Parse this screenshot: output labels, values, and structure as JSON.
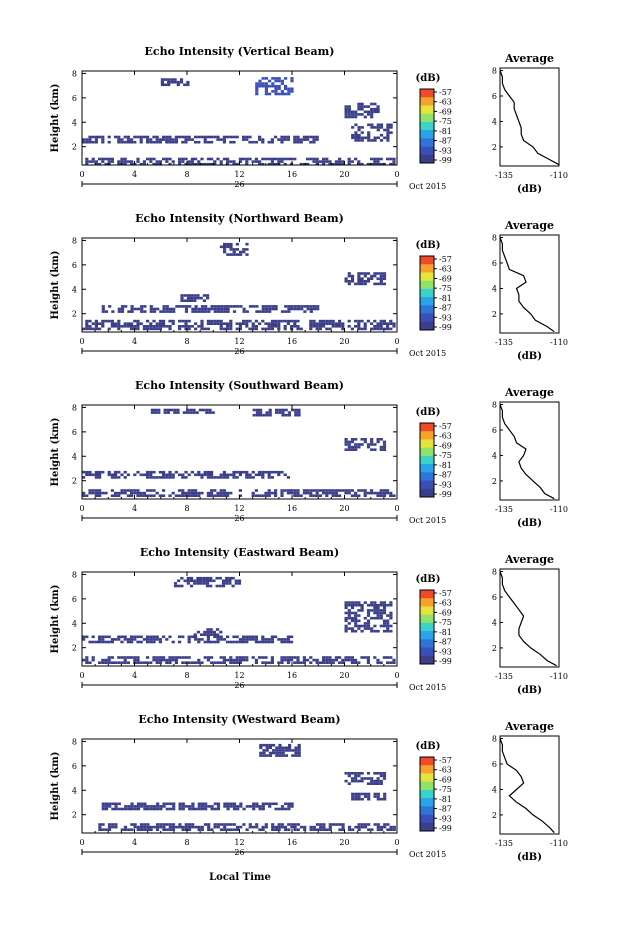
{
  "figure": {
    "x_axis_label": "Local Time",
    "date_marker": "26",
    "date_label": "Oct 2015",
    "colorbar_unit": "(dB)",
    "colorbar_ticks": [
      "-57",
      "-63",
      "-69",
      "-75",
      "-81",
      "-87",
      "-93",
      "-99"
    ],
    "avg_title": "Average",
    "avg_xlabel": "(dB)",
    "avg_xticks": [
      "-135",
      "-110"
    ]
  },
  "chart_data": [
    {
      "type": "heatmap",
      "title": "Echo Intensity (Vertical Beam)",
      "ylabel": "Height (km)",
      "x": [
        0,
        4,
        8,
        12,
        16,
        20,
        0
      ],
      "xlim": [
        0,
        24
      ],
      "ylim": [
        0.5,
        8.2
      ],
      "yticks": [
        2,
        4,
        6,
        8
      ],
      "colorbar": {
        "label": "(dB)",
        "range": [
          -99,
          -57
        ],
        "ticks": [
          -57,
          -63,
          -69,
          -75,
          -81,
          -87,
          -93,
          -99
        ]
      },
      "echo_regions": [
        {
          "t": [
            0.0,
            23.8
          ],
          "h": [
            0.6,
            1.1
          ],
          "db": -97
        },
        {
          "t": [
            0.0,
            17.8
          ],
          "h": [
            2.4,
            2.9
          ],
          "db": -98
        },
        {
          "t": [
            13.2,
            16.0
          ],
          "h": [
            6.4,
            7.7
          ],
          "db": -95
        },
        {
          "t": [
            6.0,
            8.0
          ],
          "h": [
            7.0,
            7.6
          ],
          "db": -97
        },
        {
          "t": [
            20.5,
            23.5
          ],
          "h": [
            2.5,
            3.9
          ],
          "db": -98
        },
        {
          "t": [
            20.0,
            22.5
          ],
          "h": [
            4.5,
            5.6
          ],
          "db": -98
        }
      ],
      "average": {
        "xlabel": "(dB)",
        "xlim": [
          -135,
          -110
        ],
        "ylim": [
          0.5,
          8.2
        ],
        "height": [
          0.6,
          1.0,
          1.5,
          2.0,
          2.5,
          3.0,
          3.5,
          4.0,
          4.5,
          5.0,
          5.5,
          6.0,
          6.5,
          7.0,
          7.5,
          8.0
        ],
        "db": [
          -110,
          -114,
          -119,
          -121,
          -125,
          -126,
          -126,
          -127,
          -128,
          -129,
          -129,
          -131,
          -133,
          -134,
          -134,
          -135
        ]
      }
    },
    {
      "type": "heatmap",
      "title": "Echo Intensity (Northward Beam)",
      "ylabel": "Height (km)",
      "x": [
        0,
        4,
        8,
        12,
        16,
        20,
        0
      ],
      "xlim": [
        0,
        24
      ],
      "ylim": [
        0.5,
        8.2
      ],
      "yticks": [
        2,
        4,
        6,
        8
      ],
      "colorbar": {
        "label": "(dB)",
        "range": [
          -99,
          -57
        ],
        "ticks": [
          -57,
          -63,
          -69,
          -75,
          -81,
          -87,
          -93,
          -99
        ]
      },
      "echo_regions": [
        {
          "t": [
            0.0,
            23.8
          ],
          "h": [
            0.8,
            1.5
          ],
          "db": -97
        },
        {
          "t": [
            1.5,
            18.0
          ],
          "h": [
            2.2,
            2.7
          ],
          "db": -98
        },
        {
          "t": [
            10.5,
            12.5
          ],
          "h": [
            6.8,
            7.8
          ],
          "db": -98
        },
        {
          "t": [
            20.0,
            23.0
          ],
          "h": [
            4.4,
            5.4
          ],
          "db": -98
        },
        {
          "t": [
            7.5,
            9.5
          ],
          "h": [
            3.0,
            3.6
          ],
          "db": -98
        }
      ],
      "average": {
        "xlabel": "(dB)",
        "xlim": [
          -135,
          -110
        ],
        "ylim": [
          0.5,
          8.2
        ],
        "height": [
          0.6,
          1.0,
          1.5,
          2.0,
          2.5,
          3.0,
          3.5,
          4.0,
          4.5,
          5.0,
          5.5,
          6.0,
          6.5,
          7.0,
          7.5,
          8.0
        ],
        "db": [
          -112,
          -115,
          -120,
          -122,
          -125,
          -127,
          -127,
          -128,
          -124,
          -125,
          -131,
          -132,
          -133,
          -134,
          -134,
          -135
        ]
      }
    },
    {
      "type": "heatmap",
      "title": "Echo Intensity (Southward Beam)",
      "ylabel": "Height (km)",
      "x": [
        0,
        4,
        8,
        12,
        16,
        20,
        0
      ],
      "xlim": [
        0,
        24
      ],
      "ylim": [
        0.5,
        8.2
      ],
      "yticks": [
        2,
        4,
        6,
        8
      ],
      "colorbar": {
        "label": "(dB)",
        "range": [
          -99,
          -57
        ],
        "ticks": [
          -57,
          -63,
          -69,
          -75,
          -81,
          -87,
          -93,
          -99
        ]
      },
      "echo_regions": [
        {
          "t": [
            0.0,
            23.8
          ],
          "h": [
            0.7,
            1.3
          ],
          "db": -97
        },
        {
          "t": [
            0.0,
            16.0
          ],
          "h": [
            2.3,
            2.8
          ],
          "db": -98
        },
        {
          "t": [
            13.0,
            16.5
          ],
          "h": [
            7.4,
            7.9
          ],
          "db": -98
        },
        {
          "t": [
            5.0,
            10.0
          ],
          "h": [
            7.5,
            7.9
          ],
          "db": -98
        },
        {
          "t": [
            20.0,
            23.0
          ],
          "h": [
            4.5,
            5.5
          ],
          "db": -98
        }
      ],
      "average": {
        "xlabel": "(dB)",
        "xlim": [
          -135,
          -110
        ],
        "ylim": [
          0.5,
          8.2
        ],
        "height": [
          0.6,
          1.0,
          1.5,
          2.0,
          2.5,
          3.0,
          3.5,
          4.0,
          4.5,
          5.0,
          5.5,
          6.0,
          6.5,
          7.0,
          7.5,
          8.0
        ],
        "db": [
          -112,
          -116,
          -118,
          -121,
          -124,
          -126,
          -127,
          -125,
          -124,
          -128,
          -129,
          -131,
          -133,
          -134,
          -134,
          -135
        ]
      }
    },
    {
      "type": "heatmap",
      "title": "Echo Intensity (Eastward Beam)",
      "ylabel": "Height (km)",
      "x": [
        0,
        4,
        8,
        12,
        16,
        20,
        0
      ],
      "xlim": [
        0,
        24
      ],
      "ylim": [
        0.5,
        8.2
      ],
      "yticks": [
        2,
        4,
        6,
        8
      ],
      "colorbar": {
        "label": "(dB)",
        "range": [
          -99,
          -57
        ],
        "ticks": [
          -57,
          -63,
          -69,
          -75,
          -81,
          -87,
          -93,
          -99
        ]
      },
      "echo_regions": [
        {
          "t": [
            0.0,
            23.8
          ],
          "h": [
            0.7,
            1.3
          ],
          "db": -97
        },
        {
          "t": [
            0.0,
            16.0
          ],
          "h": [
            2.5,
            3.0
          ],
          "db": -98
        },
        {
          "t": [
            8.5,
            10.5
          ],
          "h": [
            3.0,
            3.6
          ],
          "db": -98
        },
        {
          "t": [
            20.0,
            23.5
          ],
          "h": [
            3.4,
            5.8
          ],
          "db": -97
        },
        {
          "t": [
            7.0,
            12.0
          ],
          "h": [
            7.0,
            7.8
          ],
          "db": -98
        }
      ],
      "average": {
        "xlabel": "(dB)",
        "xlim": [
          -135,
          -110
        ],
        "ylim": [
          0.5,
          8.2
        ],
        "height": [
          0.6,
          1.0,
          1.5,
          2.0,
          2.5,
          3.0,
          3.5,
          4.0,
          4.5,
          5.0,
          5.5,
          6.0,
          6.5,
          7.0,
          7.5,
          8.0
        ],
        "db": [
          -111,
          -115,
          -118,
          -122,
          -125,
          -127,
          -127,
          -126,
          -125,
          -127,
          -129,
          -131,
          -133,
          -134,
          -134,
          -135
        ]
      }
    },
    {
      "type": "heatmap",
      "title": "Echo Intensity (Westward Beam)",
      "ylabel": "Height (km)",
      "x": [
        0,
        4,
        8,
        12,
        16,
        20,
        0
      ],
      "xlim": [
        0,
        24
      ],
      "ylim": [
        0.5,
        8.2
      ],
      "yticks": [
        2,
        4,
        6,
        8
      ],
      "colorbar": {
        "label": "(dB)",
        "range": [
          -99,
          -57
        ],
        "ticks": [
          -57,
          -63,
          -69,
          -75,
          -81,
          -87,
          -93,
          -99
        ]
      },
      "echo_regions": [
        {
          "t": [
            1.0,
            23.8
          ],
          "h": [
            0.7,
            1.3
          ],
          "db": -97
        },
        {
          "t": [
            1.5,
            16.0
          ],
          "h": [
            2.5,
            3.0
          ],
          "db": -98
        },
        {
          "t": [
            13.5,
            16.5
          ],
          "h": [
            6.8,
            7.8
          ],
          "db": -98
        },
        {
          "t": [
            20.0,
            23.0
          ],
          "h": [
            4.5,
            5.5
          ],
          "db": -97
        },
        {
          "t": [
            20.5,
            23.0
          ],
          "h": [
            3.2,
            3.8
          ],
          "db": -98
        }
      ],
      "average": {
        "xlabel": "(dB)",
        "xlim": [
          -135,
          -110
        ],
        "ylim": [
          0.5,
          8.2
        ],
        "height": [
          0.6,
          1.0,
          1.5,
          2.0,
          2.5,
          3.0,
          3.5,
          4.0,
          4.5,
          5.0,
          5.5,
          6.0,
          6.5,
          7.0,
          7.5,
          8.0
        ],
        "db": [
          -112,
          -114,
          -117,
          -121,
          -124,
          -128,
          -131,
          -128,
          -125,
          -126,
          -128,
          -132,
          -133,
          -134,
          -134,
          -135
        ]
      }
    }
  ]
}
